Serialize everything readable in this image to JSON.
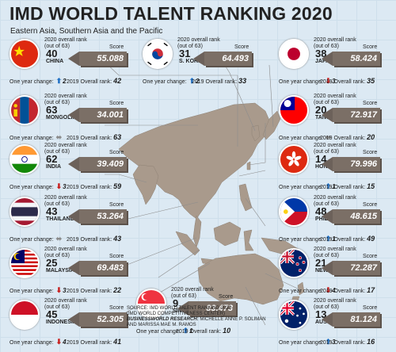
{
  "title": "IMD WORLD TALENT RANKING 2020",
  "subtitle": "Eastern Asia, Southern Asia and the Pacific",
  "labels": {
    "overall_rank": "2020 overall rank",
    "out_of": "(out of 63)",
    "score": "Score",
    "one_year_change": "One year change:",
    "prev_rank": "2019 Overall rank:"
  },
  "countries": [
    {
      "name": "CHINA",
      "rank": "40",
      "score": "55.088",
      "change": "2",
      "direction": "up",
      "prev": "42",
      "flag_icon": "china-flag-icon"
    },
    {
      "name": "S. KOREA",
      "rank": "31",
      "score": "64.493",
      "change": "2",
      "direction": "up",
      "prev": "33",
      "flag_icon": "south-korea-flag-icon"
    },
    {
      "name": "JAPAN",
      "rank": "38",
      "score": "58.424",
      "change": "3",
      "direction": "down",
      "prev": "35",
      "flag_icon": "japan-flag-icon"
    },
    {
      "name": "MONGOLIA",
      "rank": "63",
      "score": "34.001",
      "change": "",
      "direction": "flat",
      "prev": "63",
      "flag_icon": "mongolia-flag-icon"
    },
    {
      "name": "TAIWAN",
      "rank": "20",
      "score": "72.917",
      "change": "",
      "direction": "flat",
      "prev": "20",
      "flag_icon": "taiwan-flag-icon"
    },
    {
      "name": "INDIA",
      "rank": "62",
      "score": "39.409",
      "change": "3",
      "direction": "down",
      "prev": "59",
      "flag_icon": "india-flag-icon"
    },
    {
      "name": "HONG KONG",
      "rank": "14",
      "score": "79.996",
      "change": "1",
      "direction": "up",
      "prev": "15",
      "flag_icon": "hong-kong-flag-icon"
    },
    {
      "name": "THAILAND",
      "rank": "43",
      "score": "53.264",
      "change": "",
      "direction": "flat",
      "prev": "43",
      "flag_icon": "thailand-flag-icon"
    },
    {
      "name": "PHILIPPINES",
      "rank": "48",
      "score": "48.615",
      "change": "1",
      "direction": "up",
      "prev": "49",
      "flag_icon": "philippines-flag-icon"
    },
    {
      "name": "MALAYSIA",
      "rank": "25",
      "score": "69.483",
      "change": "3",
      "direction": "down",
      "prev": "22",
      "flag_icon": "malaysia-flag-icon"
    },
    {
      "name": "NEW ZEALAND",
      "rank": "21",
      "score": "72.287",
      "change": "4",
      "direction": "down",
      "prev": "17",
      "flag_icon": "new-zealand-flag-icon"
    },
    {
      "name": "SINGAPORE",
      "rank": "9",
      "score": "83.473",
      "change": "1",
      "direction": "up",
      "prev": "10",
      "flag_icon": "singapore-flag-icon"
    },
    {
      "name": "INDONESIA",
      "rank": "45",
      "score": "52.305",
      "change": "4",
      "direction": "down",
      "prev": "41",
      "flag_icon": "indonesia-flag-icon"
    },
    {
      "name": "AUSTRALIA",
      "rank": "13",
      "score": "81.124",
      "change": "3",
      "direction": "up",
      "prev": "16",
      "flag_icon": "australia-flag-icon"
    }
  ],
  "source": {
    "line1": "SOURCE: IMD WORLD TALENT RANKING 2020",
    "line2": "(IMD WORLD COMPETITIVENESS CENTER)",
    "line3_label": "BUSINESSWORLD RESEARCH:",
    "line3_names": "MICHELLE ANNE P. SOLIMAN",
    "line4": "AND MARISSA MAE M. RAMOS"
  },
  "colors": {
    "background": "#dce9f3",
    "land": "#a99a8c",
    "score_box": "#7b6f66",
    "up": "#1f6fc4",
    "down": "#c8201f",
    "flat": "#8a8a8a"
  }
}
